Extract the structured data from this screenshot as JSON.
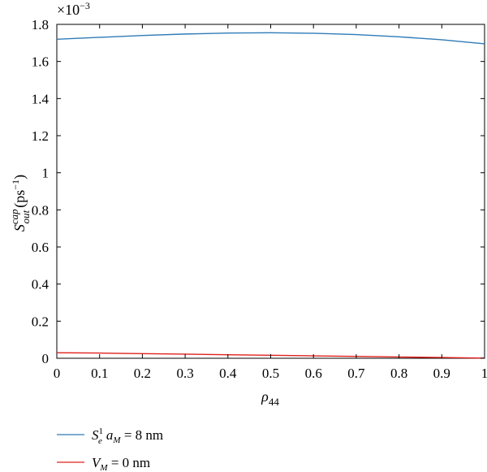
{
  "chart_data": {
    "type": "line",
    "title": "",
    "xlabel": {
      "base": "ρ",
      "sub": "44"
    },
    "ylabel": {
      "base": "S",
      "sup": "cap",
      "sub": "out",
      "unit_prefix": "(ps",
      "unit_exp": "−1",
      "unit_suffix": ")"
    },
    "y_scale_note": {
      "base": "×10",
      "exp": "−3"
    },
    "xlim": [
      0,
      1
    ],
    "ylim": [
      0,
      1.8
    ],
    "xticks": [
      0,
      0.1,
      0.2,
      0.3,
      0.4,
      0.5,
      0.6,
      0.7,
      0.8,
      0.9,
      1
    ],
    "xtick_labels": [
      "0",
      "0.1",
      "0.2",
      "0.3",
      "0.4",
      "0.5",
      "0.6",
      "0.7",
      "0.8",
      "0.9",
      "1"
    ],
    "yticks": [
      0,
      0.2,
      0.4,
      0.6,
      0.8,
      1,
      1.2,
      1.4,
      1.6,
      1.8
    ],
    "ytick_labels": [
      "0",
      "0.2",
      "0.4",
      "0.6",
      "0.8",
      "1",
      "1.2",
      "1.4",
      "1.6",
      "1.8"
    ],
    "grid": false,
    "legend_position": "bottom-left below plot",
    "x": [
      0,
      0.1,
      0.2,
      0.3,
      0.4,
      0.5,
      0.6,
      0.7,
      0.8,
      0.9,
      1
    ],
    "series": [
      {
        "legend": {
          "s": "S",
          "s_sup": "1",
          "s_sub": "e",
          "a": "a",
          "a_sub": "M",
          "rest": " = 8 nm"
        },
        "color": "#2e7bb8",
        "values": [
          1.72,
          1.73,
          1.74,
          1.748,
          1.753,
          1.755,
          1.752,
          1.745,
          1.733,
          1.717,
          1.695
        ]
      },
      {
        "legend": {
          "v": "V",
          "v_sub": "M",
          "rest": " = 0 nm"
        },
        "color": "#e0201b",
        "values": [
          0.03,
          0.028,
          0.025,
          0.022,
          0.019,
          0.016,
          0.013,
          0.01,
          0.007,
          0.004,
          0.001
        ]
      }
    ]
  }
}
